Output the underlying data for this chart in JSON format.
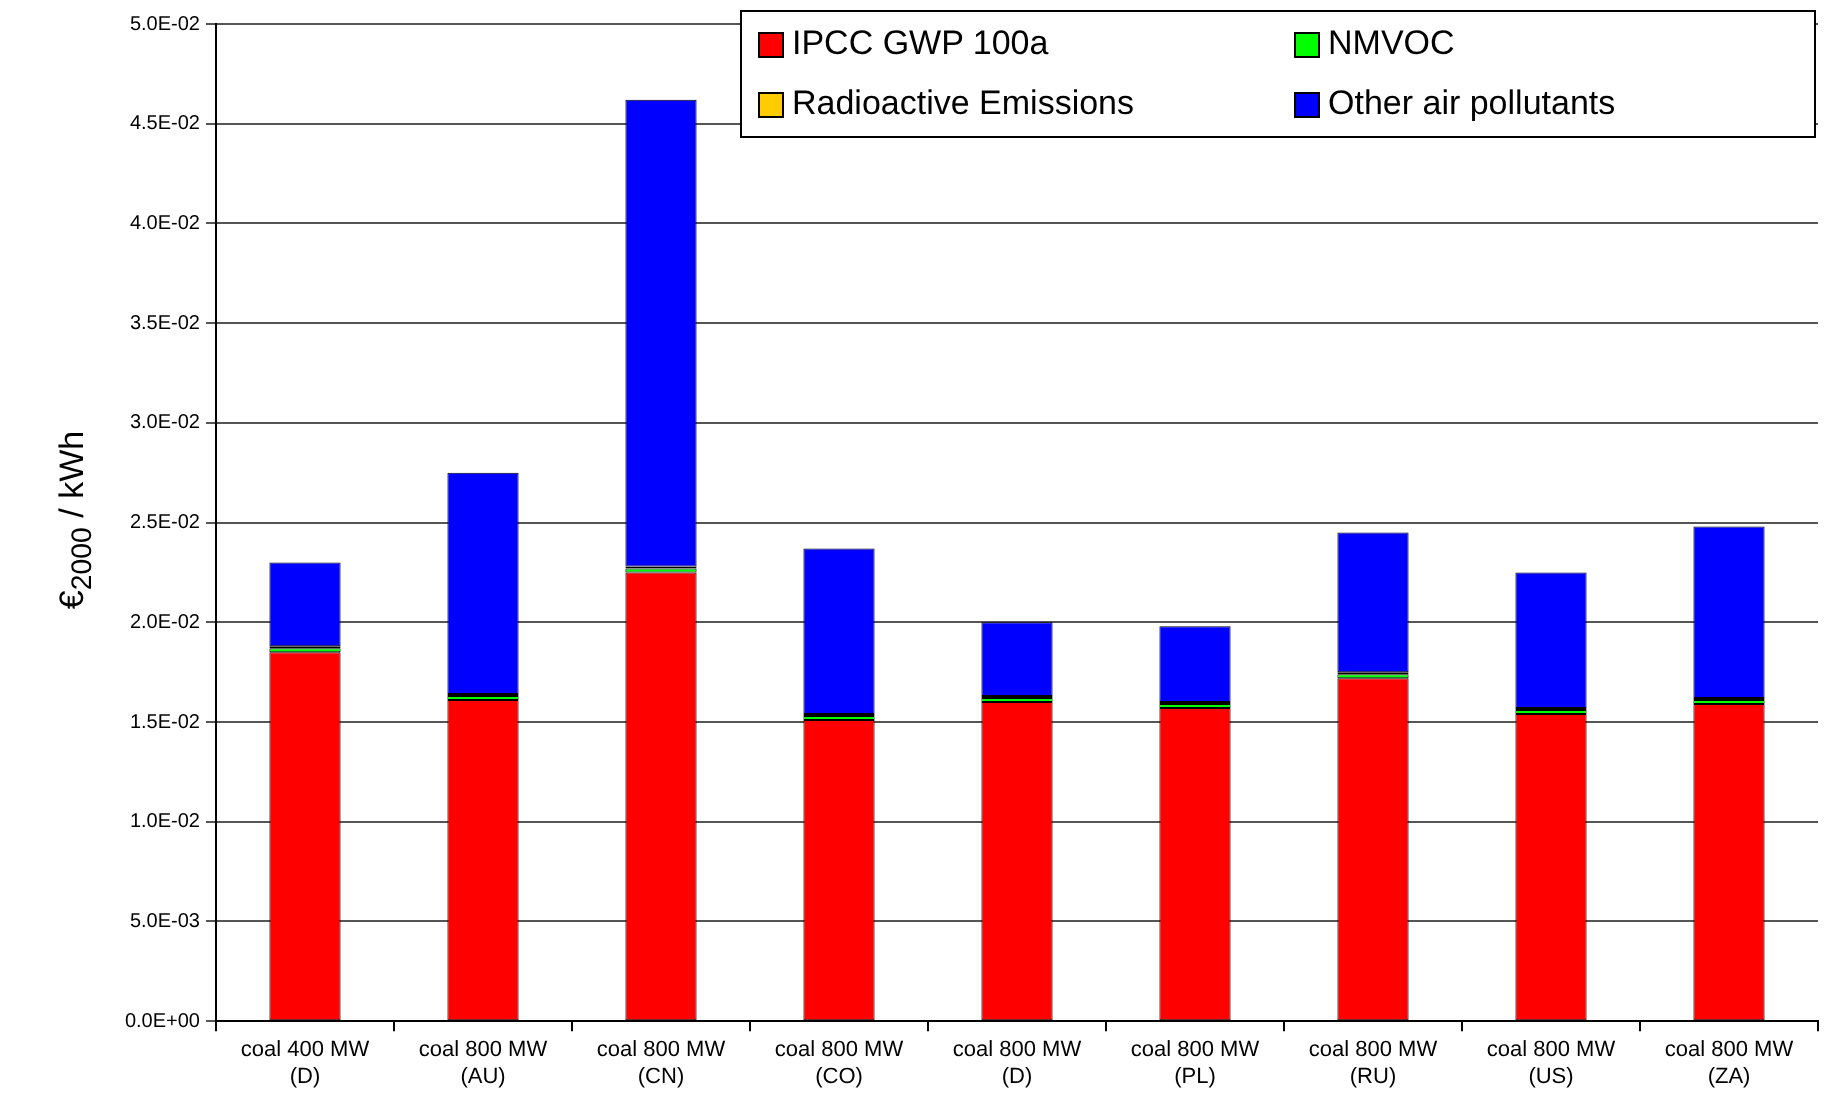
{
  "chart_data": {
    "type": "bar",
    "stacked": true,
    "ylabel": "€$_{2000}$ / kWh",
    "categories": [
      "coal 400 MW (D)",
      "coal 800 MW (AU)",
      "coal 800 MW (CN)",
      "coal 800 MW (CO)",
      "coal 800 MW (D)",
      "coal 800 MW (PL)",
      "coal 800 MW (RU)",
      "coal 800 MW (US)",
      "coal 800 MW (ZA)"
    ],
    "series": [
      {
        "name": "IPCC GWP 100a",
        "color": "#ff0000",
        "values": [
          0.0185,
          0.0161,
          0.0225,
          0.0151,
          0.016,
          0.0157,
          0.0172,
          0.0154,
          0.0159
        ]
      },
      {
        "name": "NMVOC",
        "color": "#00ff00",
        "values": [
          0.0002,
          0.0002,
          0.0002,
          0.0002,
          0.0002,
          0.0002,
          0.0002,
          0.0002,
          0.0002
        ]
      },
      {
        "name": "Radioactive Emissions",
        "color": "#ffcc00",
        "values": [
          0.0001,
          0.0001,
          0.0001,
          0.0001,
          0.0001,
          0.0001,
          0.0001,
          0.0001,
          0.0001
        ]
      },
      {
        "name": "Other air pollutants",
        "color": "#0000ff",
        "values": [
          0.0042,
          0.0111,
          0.0234,
          0.0083,
          0.0037,
          0.0038,
          0.007,
          0.0068,
          0.0086
        ]
      }
    ],
    "ylim": [
      0,
      0.05
    ],
    "yticks": [
      {
        "value": 0,
        "label": "0.0E+00"
      },
      {
        "value": 0.005,
        "label": "5.0E-03"
      },
      {
        "value": 0.01,
        "label": "1.0E-02"
      },
      {
        "value": 0.015,
        "label": "1.5E-02"
      },
      {
        "value": 0.02,
        "label": "2.0E-02"
      },
      {
        "value": 0.025,
        "label": "2.5E-02"
      },
      {
        "value": 0.03,
        "label": "3.0E-02"
      },
      {
        "value": 0.035,
        "label": "3.5E-02"
      },
      {
        "value": 0.04,
        "label": "4.0E-02"
      },
      {
        "value": 0.045,
        "label": "4.5E-02"
      },
      {
        "value": 0.05,
        "label": "5.0E-02"
      }
    ],
    "grid": "y",
    "legend": "top right"
  }
}
